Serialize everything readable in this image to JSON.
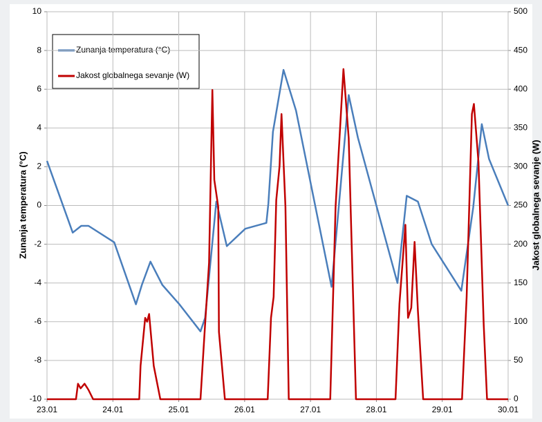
{
  "chart_data": {
    "type": "line",
    "y_label": "Zunanja temperatura (°C)",
    "y2_label": "Jakost globalnega sevanje (W)",
    "xlim": [
      0,
      7
    ],
    "xticks": [
      {
        "value": 0,
        "label": "23.01"
      },
      {
        "value": 1,
        "label": "24.01"
      },
      {
        "value": 2,
        "label": "25.01"
      },
      {
        "value": 3,
        "label": "26.01"
      },
      {
        "value": 4,
        "label": "27.01"
      },
      {
        "value": 5,
        "label": "28.01"
      },
      {
        "value": 6,
        "label": "29.01"
      },
      {
        "value": 7,
        "label": "30.01"
      }
    ],
    "ylim": [
      -10,
      10
    ],
    "yticks": [
      -10,
      -8,
      -6,
      -4,
      -2,
      0,
      2,
      4,
      6,
      8,
      10
    ],
    "y2lim": [
      0,
      500
    ],
    "y2ticks": [
      0,
      50,
      100,
      150,
      200,
      250,
      300,
      350,
      400,
      450,
      500
    ],
    "grid": true,
    "legend": "upper left",
    "series": [
      {
        "name": "Zunanja temperatura (°C)",
        "color": "#4a7ebb",
        "x": [
          0,
          0.39,
          0.52,
          0.63,
          1.02,
          1.35,
          1.44,
          1.57,
          1.75,
          2.01,
          2.33,
          2.4,
          2.57,
          2.73,
          3.01,
          3.33,
          3.36,
          3.43,
          3.59,
          3.78,
          4.32,
          4.41,
          4.58,
          4.72,
          5.32,
          5.46,
          5.63,
          5.84,
          6.29,
          6.47,
          6.6,
          6.71,
          7.0
        ],
        "values": [
          2.3,
          -1.4,
          -1.05,
          -1.05,
          -1.9,
          -5.1,
          -4.1,
          -2.9,
          -4.1,
          -5.1,
          -6.5,
          -5.8,
          0.2,
          -2.1,
          -1.2,
          -0.9,
          0.1,
          3.8,
          7.0,
          4.9,
          -4.2,
          -0.8,
          5.7,
          3.5,
          -4.0,
          0.5,
          0.2,
          -2.0,
          -4.4,
          -0.1,
          4.2,
          2.4,
          0
        ]
      },
      {
        "name": "Jakost globalnega sevanje (W)",
        "color": "#c00000",
        "axis": "y2",
        "x": [
          0,
          0.44,
          0.47,
          0.51,
          0.57,
          0.63,
          0.7,
          1.4,
          1.42,
          1.49,
          1.52,
          1.55,
          1.62,
          1.72,
          2.33,
          2.39,
          2.46,
          2.51,
          2.54,
          2.6,
          2.61,
          2.7,
          3.35,
          3.4,
          3.44,
          3.48,
          3.53,
          3.56,
          3.62,
          3.67,
          4.3,
          4.38,
          4.5,
          4.58,
          4.69,
          5.29,
          5.35,
          5.44,
          5.48,
          5.53,
          5.58,
          5.63,
          5.71,
          6.3,
          6.37,
          6.45,
          6.48,
          6.55,
          6.63,
          6.68,
          7.0
        ],
        "values": [
          0,
          0,
          20,
          14,
          20,
          12,
          0,
          0,
          43,
          105,
          100,
          110,
          43,
          0,
          0,
          83,
          176,
          399,
          283,
          248,
          87,
          0,
          0,
          105,
          132,
          257,
          301,
          368,
          248,
          0,
          0,
          248,
          426,
          337,
          0,
          0,
          123,
          225,
          105,
          118,
          203,
          114,
          0,
          0,
          132,
          368,
          381,
          306,
          96,
          0,
          0
        ]
      }
    ]
  }
}
